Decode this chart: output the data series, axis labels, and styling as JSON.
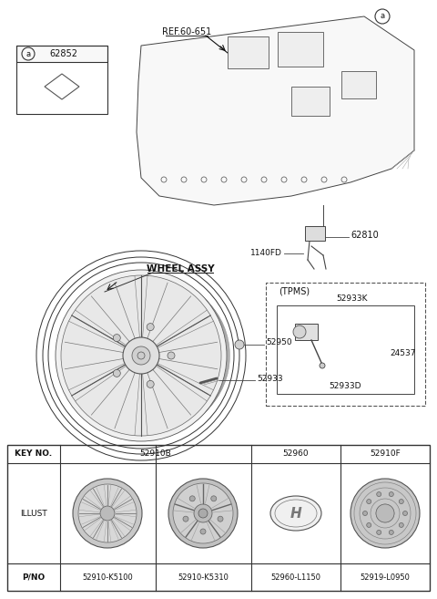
{
  "bg_color": "#ffffff",
  "labels": {
    "ref": "REF.60-651",
    "part_62852": "62852",
    "part_62810": "62810",
    "part_1140FD": "1140FD",
    "part_52950": "52950",
    "part_52933": "52933",
    "wheel_assy": "WHEEL ASSY",
    "tpms": "(TPMS)",
    "part_52933K": "52933K",
    "part_24537": "24537",
    "part_52933D": "52933D",
    "label_a": "a"
  },
  "table": {
    "col_headers": [
      "KEY NO.",
      "52910B",
      "",
      "52960",
      "52910F"
    ],
    "row_illust": "ILLUST",
    "row_pno": "P/NO",
    "pno_vals": [
      "52910-K5100",
      "52910-K5310",
      "52960-L1150",
      "52919-L0950"
    ]
  }
}
